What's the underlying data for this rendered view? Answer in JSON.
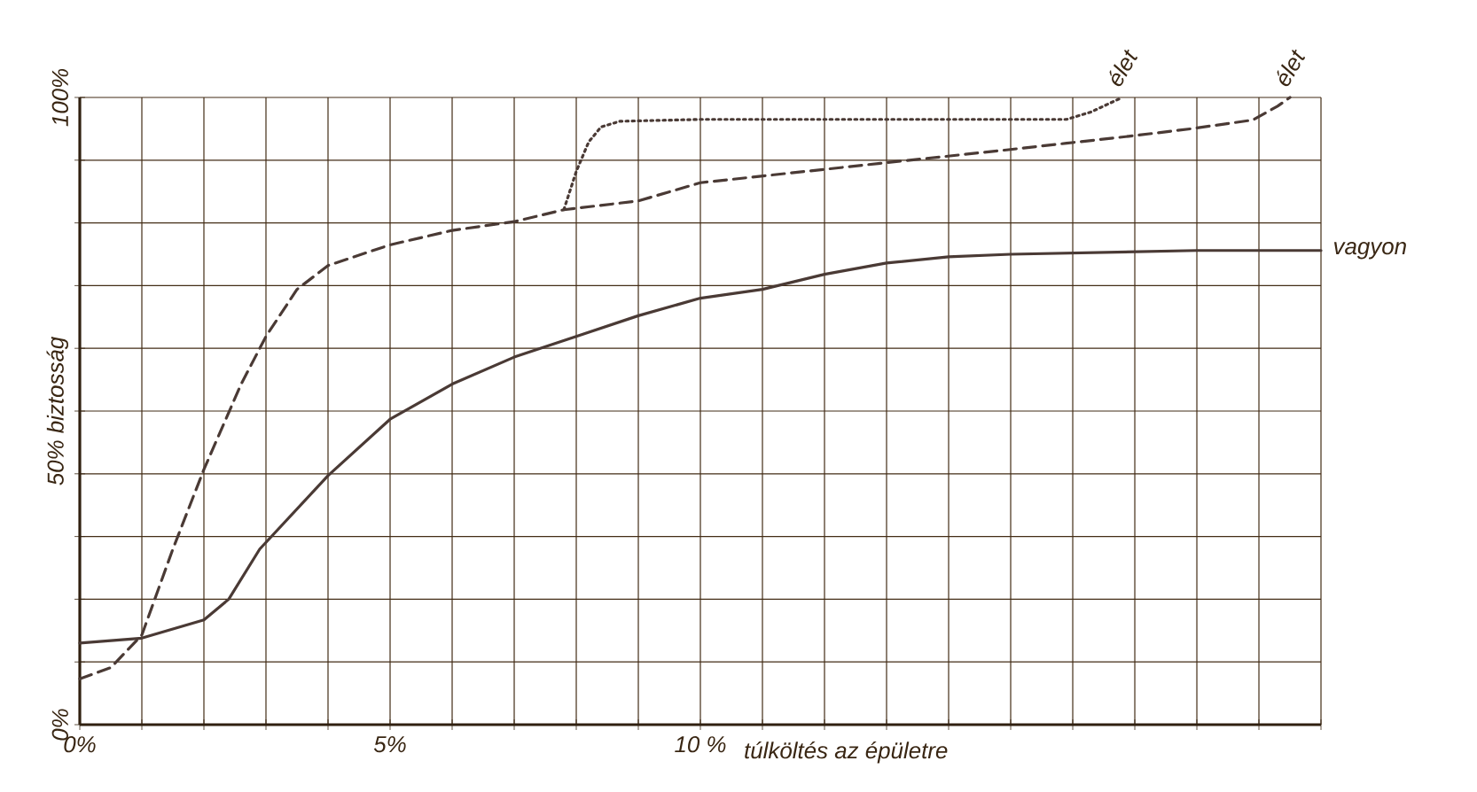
{
  "chart_data": {
    "type": "line",
    "xlabel": "túlköltés az épületre",
    "xlim": [
      0,
      20
    ],
    "ylim": [
      0,
      100
    ],
    "xticks": [
      {
        "value": 0,
        "label": "0%"
      },
      {
        "value": 1,
        "label": null
      },
      {
        "value": 2,
        "label": null
      },
      {
        "value": 3,
        "label": null
      },
      {
        "value": 4,
        "label": null
      },
      {
        "value": 5,
        "label": "5%"
      },
      {
        "value": 6,
        "label": null
      },
      {
        "value": 7,
        "label": null
      },
      {
        "value": 8,
        "label": null
      },
      {
        "value": 9,
        "label": null
      },
      {
        "value": 10,
        "label": "10 %"
      },
      {
        "value": 11,
        "label": null
      },
      {
        "value": 12,
        "label": null
      },
      {
        "value": 13,
        "label": null
      },
      {
        "value": 14,
        "label": null
      },
      {
        "value": 15,
        "label": null
      },
      {
        "value": 16,
        "label": null
      },
      {
        "value": 17,
        "label": null
      },
      {
        "value": 18,
        "label": null
      },
      {
        "value": 19,
        "label": null
      },
      {
        "value": 20,
        "label": null
      }
    ],
    "yticks": [
      {
        "value": 0,
        "label": "0%"
      },
      {
        "value": 10,
        "label": null
      },
      {
        "value": 20,
        "label": null
      },
      {
        "value": 30,
        "label": null
      },
      {
        "value": 40,
        "label": null
      },
      {
        "value": 50,
        "label": "50% biztosság"
      },
      {
        "value": 60,
        "label": null
      },
      {
        "value": 70,
        "label": null
      },
      {
        "value": 80,
        "label": null
      },
      {
        "value": 90,
        "label": null
      },
      {
        "value": 100,
        "label": "100%"
      }
    ],
    "grid": true,
    "marker": "none",
    "series": [
      {
        "name": "vagyon",
        "color": "#4a3a35",
        "line_style": "solid",
        "x": [
          0,
          1,
          2,
          2.4,
          2.9,
          4,
          5,
          6,
          7,
          8,
          9,
          10,
          11,
          12,
          13,
          14,
          15,
          16,
          17,
          18,
          19,
          20
        ],
        "values": [
          13,
          13.8,
          16.7,
          20,
          28,
          39.7,
          48.7,
          54.3,
          58.6,
          61.9,
          65.2,
          68,
          69.4,
          71.8,
          73.6,
          74.6,
          75,
          75.2,
          75.4,
          75.6,
          75.6,
          75.6
        ]
      },
      {
        "name": "élet",
        "color": "#4a3a35",
        "line_style": "dashed",
        "x": [
          0,
          0.5,
          1,
          1.5,
          2,
          2.6,
          3,
          3.5,
          4,
          5,
          6,
          7,
          7.8,
          9,
          10,
          12.9,
          14.9,
          15.9,
          16.9,
          17.9,
          18.9,
          19.3,
          19.5
        ],
        "values": [
          7.3,
          9.1,
          14.3,
          28,
          40.7,
          54.3,
          61.9,
          69.4,
          73.2,
          76.5,
          78.8,
          80.2,
          82.1,
          83.5,
          86.4,
          89.5,
          91.6,
          92.7,
          93.8,
          95,
          96.4,
          98.6,
          100
        ]
      },
      {
        "name": "élet",
        "color": "#4a3a35",
        "line_style": "dotted",
        "x": [
          7.8,
          8,
          8.2,
          8.4,
          8.7,
          10,
          12,
          14,
          15.9,
          16.3,
          16.6,
          16.8
        ],
        "values": [
          82.1,
          88.2,
          92.9,
          95.3,
          96.2,
          96.5,
          96.5,
          96.5,
          96.5,
          97.7,
          99.1,
          100
        ]
      }
    ]
  }
}
